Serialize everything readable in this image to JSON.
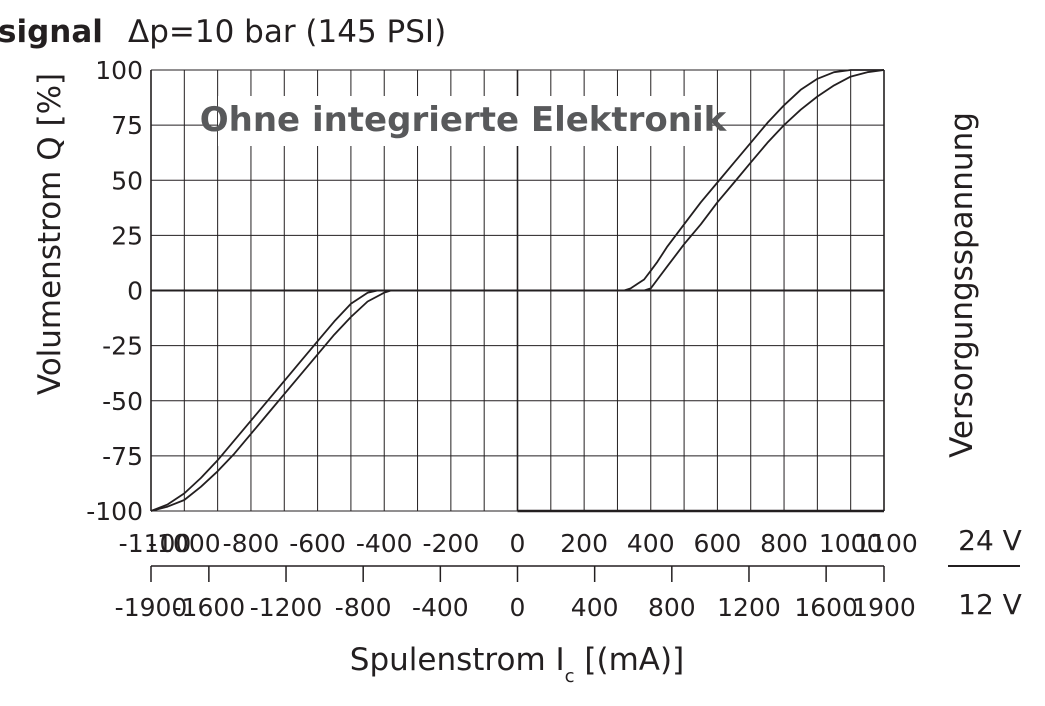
{
  "header": {
    "title": "signal",
    "subtitle": "Δp=10 bar (145 PSI)"
  },
  "chart_data": {
    "type": "line",
    "title": "Ohne integrierte Elektronik",
    "ylabel": "Volumenstrom Q [%]",
    "xlabel_prefix": "Spulenstrom I",
    "xlabel_sub": "c",
    "xlabel_suffix": " [(mA)]",
    "right_label": "Versorgungsspannung",
    "ylim": [
      -100,
      100
    ],
    "xlim": [
      -1100,
      1100
    ],
    "grid": true,
    "y_ticks": [
      100,
      75,
      50,
      25,
      0,
      -25,
      -50,
      -75,
      -100
    ],
    "x_ticks_24v": [
      -1100,
      -1000,
      -800,
      -600,
      -400,
      -200,
      0,
      200,
      400,
      600,
      800,
      1000,
      1100
    ],
    "x_ticks_12v": [
      -1900,
      -1600,
      -1200,
      -800,
      -400,
      0,
      400,
      800,
      1200,
      1600,
      1900
    ],
    "scale_labels": [
      "24 V",
      "12 V"
    ],
    "series": [
      {
        "x": [
          -1100,
          -1050,
          -1000,
          -950,
          -900,
          -850,
          -800,
          -750,
          -700,
          -650,
          -600,
          -550,
          -500,
          -450,
          -420,
          -400,
          -380,
          -360,
          -340,
          -320,
          320,
          340,
          360,
          380,
          400,
          420,
          450,
          500,
          550,
          600,
          650,
          700,
          750,
          800,
          850,
          900,
          950,
          1000,
          1050,
          1100
        ],
        "y": [
          -100,
          -97,
          -92,
          -85,
          -77,
          -68,
          -59,
          -50,
          -41,
          -32,
          -23,
          -14,
          -6,
          -1,
          0,
          0,
          0,
          0,
          0,
          0,
          0,
          1,
          3,
          5,
          9,
          13,
          20,
          30,
          40,
          49,
          58,
          67,
          76,
          84,
          91,
          96,
          99,
          100,
          100,
          100
        ]
      },
      {
        "x": [
          -1100,
          -1050,
          -1000,
          -950,
          -900,
          -850,
          -800,
          -750,
          -700,
          -650,
          -600,
          -550,
          -500,
          -450,
          -400,
          -380,
          -360,
          -340,
          -320,
          -300,
          -280,
          380,
          400,
          420,
          450,
          500,
          550,
          600,
          650,
          700,
          750,
          800,
          850,
          900,
          950,
          1000,
          1050,
          1100
        ],
        "y": [
          -100,
          -98,
          -95,
          -89,
          -82,
          -74,
          -65,
          -56,
          -47,
          -38,
          -29,
          -20,
          -12,
          -5,
          -1,
          0,
          0,
          0,
          0,
          0,
          0,
          0,
          1,
          5,
          11,
          21,
          30,
          40,
          49,
          58,
          67,
          75,
          82,
          88,
          93,
          97,
          99,
          100
        ]
      }
    ]
  }
}
